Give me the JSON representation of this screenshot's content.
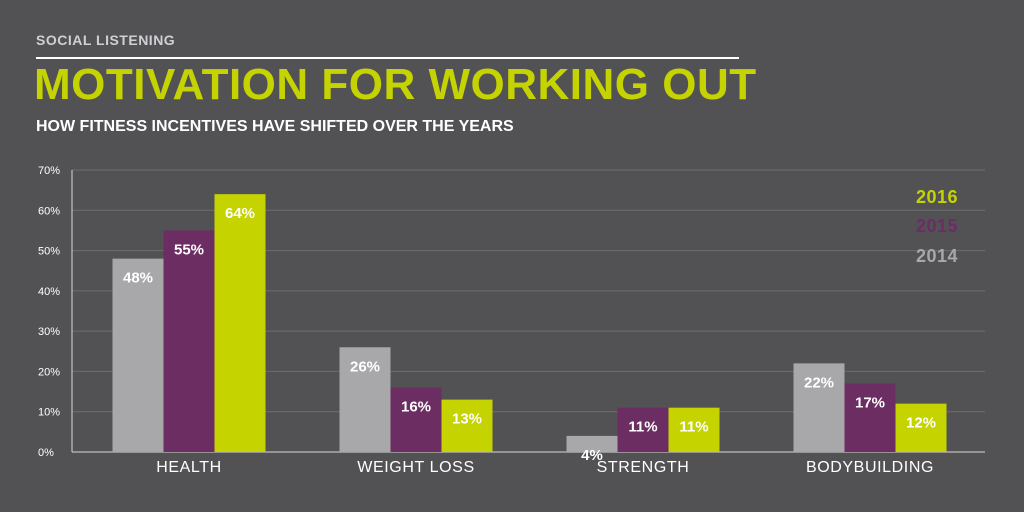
{
  "header": {
    "kicker": "SOCIAL LISTENING",
    "title": "MOTIVATION FOR WORKING OUT",
    "subtitle": "HOW FITNESS INCENTIVES HAVE SHIFTED OVER THE YEARS"
  },
  "colors": {
    "background": "#525255",
    "title": "#c5d400",
    "grid": "#6e6e72",
    "axis": "#d8d8d8",
    "series_2014": "#a8a8aa",
    "series_2015": "#6b2d62",
    "series_2016": "#c5d400"
  },
  "chart_data": {
    "type": "bar",
    "categories": [
      "HEALTH",
      "WEIGHT LOSS",
      "STRENGTH",
      "BODYBUILDING"
    ],
    "series": [
      {
        "name": "2014",
        "values": [
          48,
          26,
          4,
          22
        ],
        "labels": [
          "48%",
          "26%",
          "4%",
          "22%"
        ],
        "color": "#a8a8aa"
      },
      {
        "name": "2015",
        "values": [
          55,
          16,
          11,
          17
        ],
        "labels": [
          "55%",
          "16%",
          "11%",
          "17%"
        ],
        "color": "#6b2d62"
      },
      {
        "name": "2016",
        "values": [
          64,
          13,
          11,
          12
        ],
        "labels": [
          "64%",
          "13%",
          "11%",
          "12%"
        ],
        "color": "#c5d400"
      }
    ],
    "ylim": [
      0,
      70
    ],
    "yticks": [
      0,
      10,
      20,
      30,
      40,
      50,
      60,
      70
    ],
    "ytick_labels": [
      "0%",
      "10%",
      "20%",
      "30%",
      "40%",
      "50%",
      "60%",
      "70%"
    ],
    "grid": true,
    "legend_placement": "top-right",
    "legend_order": [
      "2016",
      "2015",
      "2014"
    ]
  }
}
